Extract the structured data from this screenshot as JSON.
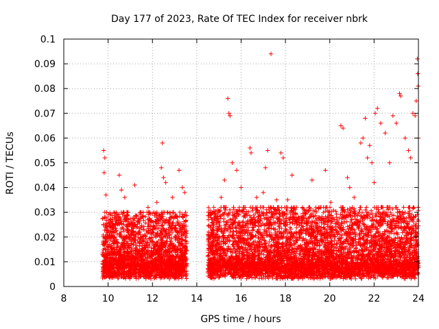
{
  "chart_data": {
    "type": "scatter",
    "title": "Day 177 of 2023, Rate Of TEC Index for receiver nbrk",
    "xlabel": "GPS time / hours",
    "ylabel": "ROTI / TECUs",
    "xlim": [
      8,
      24
    ],
    "ylim": [
      0,
      0.1
    ],
    "xticks": [
      "8",
      "10",
      "12",
      "14",
      "16",
      "18",
      "20",
      "22",
      "24"
    ],
    "yticks": [
      "0",
      "0.01",
      "0.02",
      "0.03",
      "0.04",
      "0.05",
      "0.06",
      "0.07",
      "0.08",
      "0.09",
      "0.1"
    ],
    "grid": true,
    "marker": "+",
    "colors": {
      "series": "#ff0000",
      "grid": "#a0a0a0",
      "frame": "#000000"
    },
    "series": [
      {
        "points": [
          [
            9.8,
            0.055
          ],
          [
            9.85,
            0.052
          ],
          [
            9.82,
            0.046
          ],
          [
            9.9,
            0.037
          ],
          [
            9.78,
            0.025
          ],
          [
            9.95,
            0.028
          ],
          [
            10.0,
            0.02
          ],
          [
            10.3,
            0.018
          ],
          [
            10.5,
            0.045
          ],
          [
            10.6,
            0.039
          ],
          [
            10.75,
            0.036
          ],
          [
            10.9,
            0.03
          ],
          [
            11.2,
            0.041
          ],
          [
            11.5,
            0.028
          ],
          [
            11.8,
            0.032
          ],
          [
            12.2,
            0.034
          ],
          [
            12.45,
            0.058
          ],
          [
            12.4,
            0.048
          ],
          [
            12.5,
            0.044
          ],
          [
            12.6,
            0.042
          ],
          [
            12.9,
            0.036
          ],
          [
            13.2,
            0.047
          ],
          [
            13.35,
            0.04
          ],
          [
            13.45,
            0.038
          ],
          [
            13.5,
            0.03
          ],
          [
            14.6,
            0.03
          ],
          [
            14.9,
            0.028
          ],
          [
            15.1,
            0.036
          ],
          [
            15.25,
            0.043
          ],
          [
            15.4,
            0.076
          ],
          [
            15.45,
            0.07
          ],
          [
            15.5,
            0.069
          ],
          [
            15.6,
            0.05
          ],
          [
            15.8,
            0.047
          ],
          [
            16.0,
            0.04
          ],
          [
            16.4,
            0.056
          ],
          [
            16.45,
            0.054
          ],
          [
            16.7,
            0.036
          ],
          [
            17.0,
            0.038
          ],
          [
            17.1,
            0.048
          ],
          [
            17.2,
            0.055
          ],
          [
            17.35,
            0.094
          ],
          [
            17.6,
            0.035
          ],
          [
            17.8,
            0.054
          ],
          [
            17.9,
            0.052
          ],
          [
            18.1,
            0.035
          ],
          [
            18.3,
            0.045
          ],
          [
            18.5,
            0.032
          ],
          [
            18.9,
            0.03
          ],
          [
            19.2,
            0.043
          ],
          [
            19.5,
            0.028
          ],
          [
            19.8,
            0.047
          ],
          [
            20.05,
            0.034
          ],
          [
            20.3,
            0.028
          ],
          [
            20.5,
            0.065
          ],
          [
            20.6,
            0.064
          ],
          [
            20.8,
            0.044
          ],
          [
            20.9,
            0.04
          ],
          [
            21.1,
            0.036
          ],
          [
            21.4,
            0.058
          ],
          [
            21.5,
            0.06
          ],
          [
            21.6,
            0.068
          ],
          [
            21.7,
            0.052
          ],
          [
            21.8,
            0.057
          ],
          [
            21.9,
            0.05
          ],
          [
            22.0,
            0.042
          ],
          [
            22.05,
            0.07
          ],
          [
            22.15,
            0.072
          ],
          [
            22.3,
            0.066
          ],
          [
            22.5,
            0.062
          ],
          [
            22.7,
            0.05
          ],
          [
            22.85,
            0.069
          ],
          [
            23.0,
            0.066
          ],
          [
            23.15,
            0.078
          ],
          [
            23.2,
            0.077
          ],
          [
            23.4,
            0.06
          ],
          [
            23.55,
            0.055
          ],
          [
            23.65,
            0.052
          ],
          [
            23.75,
            0.07
          ],
          [
            23.85,
            0.069
          ],
          [
            23.9,
            0.075
          ],
          [
            23.95,
            0.092
          ],
          [
            23.97,
            0.086
          ],
          [
            23.99,
            0.081
          ],
          [
            24.0,
            0.06
          ]
        ],
        "clusters": [
          {
            "x": [
              9.75,
              13.55
            ],
            "y": [
              0.003,
              0.03
            ],
            "count": 2200
          },
          {
            "x": [
              14.5,
              24.0
            ],
            "y": [
              0.003,
              0.032
            ],
            "count": 5200
          }
        ]
      }
    ]
  }
}
